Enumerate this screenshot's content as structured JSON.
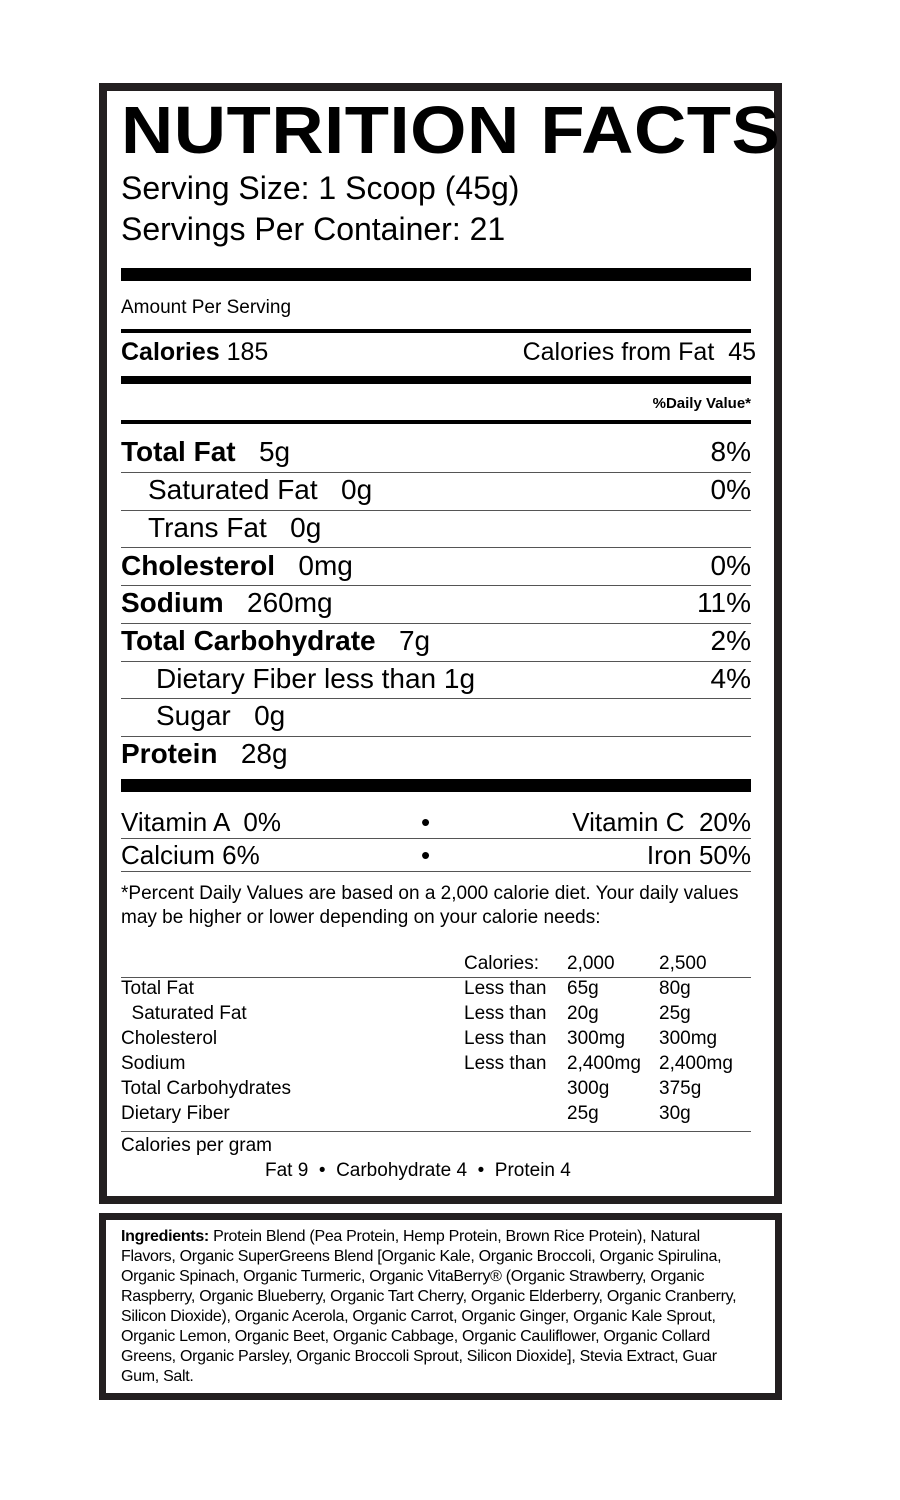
{
  "title": "NUTRITION FACTS",
  "serving_size": "Serving Size: 1 Scoop (45g)",
  "servings_per_container": "Servings Per Container: 21",
  "amount_per_serving": "Amount Per Serving",
  "calories": {
    "label": "Calories",
    "value": "185",
    "from_fat_label": "Calories from Fat",
    "from_fat_value": "45"
  },
  "daily_value_header": "%Daily Value*",
  "nutrients": [
    {
      "name": "Total Fat",
      "amount": "5g",
      "dv": "8%"
    },
    {
      "name": "Saturated Fat",
      "amount": "0g",
      "dv": "0%"
    },
    {
      "name": "Trans Fat",
      "amount": "0g",
      "dv": ""
    },
    {
      "name": "Cholesterol",
      "amount": "0mg",
      "dv": "0%"
    },
    {
      "name": "Sodium",
      "amount": "260mg",
      "dv": "11%"
    },
    {
      "name": "Total Carbohydrate",
      "amount": "7g",
      "dv": "2%"
    },
    {
      "name": "Dietary Fiber less than",
      "amount": "1g",
      "dv": "4%"
    },
    {
      "name": "Sugar",
      "amount": "0g",
      "dv": ""
    },
    {
      "name": "Protein",
      "amount": "28g",
      "dv": ""
    }
  ],
  "vitamins": [
    {
      "left": "Vitamin A  0%",
      "right": "Vitamin C  20%"
    },
    {
      "left": "Calcium 6%",
      "right": "Iron 50%"
    }
  ],
  "bullet": "•",
  "footnote": "*Percent Daily Values are based on a 2,000 calorie diet. Your daily values may be higher or lower depending on your calorie needs:",
  "dv_table": {
    "header": [
      "",
      "Calories:",
      "2,000",
      "2,500"
    ],
    "rows": [
      [
        "Total Fat",
        "Less than",
        "65g",
        "80g"
      ],
      [
        "  Saturated Fat",
        "Less than",
        "20g",
        "25g"
      ],
      [
        "Cholesterol",
        "Less than",
        "300mg",
        "300mg"
      ],
      [
        "Sodium",
        "Less than",
        "2,400mg",
        "2,400mg"
      ],
      [
        "Total Carbohydrates",
        "",
        "300g",
        "375g"
      ],
      [
        "Dietary Fiber",
        "",
        "25g",
        "30g"
      ]
    ]
  },
  "calories_per_gram": "Calories per gram",
  "calories_per_gram_values": "Fat 9  •  Carbohydrate 4  •  Protein 4",
  "ingredients": {
    "label": "Ingredients:",
    "text": " Protein Blend (Pea Protein, Hemp Protein, Brown Rice Protein), Natural Flavors, Organic SuperGreens Blend [Organic Kale, Organic Broccoli, Organic Spirulina, Organic Spinach, Organic Turmeric, Organic VitaBerry® (Organic Strawberry, Organic Raspberry, Organic Blueberry, Organic Tart Cherry, Organic Elderberry, Organic Cranberry, Silicon Dioxide), Organic Acerola, Organic Carrot, Organic Ginger, Organic Kale Sprout, Organic Lemon, Organic Beet, Organic Cabbage, Organic Cauliflower, Organic Collard Greens, Organic Parsley, Organic Broccoli Sprout, Silicon Dioxide], Stevia Extract, Guar Gum, Salt."
  }
}
